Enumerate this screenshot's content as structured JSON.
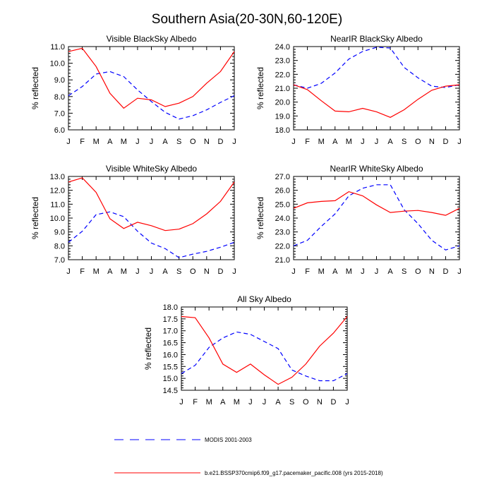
{
  "figure": {
    "title": "Southern Asia(20-30N,60-120E)",
    "legend": [
      {
        "label": "MODIS 2001-2003",
        "color": "#0000ff",
        "style": "dashed"
      },
      {
        "label": "b.e21.BSSP370cmip6.f09_g17.pacemaker_pacific.008 (yrs 2015-2018)",
        "color": "#ff0000",
        "style": "solid"
      }
    ]
  },
  "chart_data": [
    {
      "type": "line",
      "title": "Visible BlackSky Albedo",
      "ylabel": "% reflected",
      "categories": [
        "J",
        "F",
        "M",
        "A",
        "M",
        "J",
        "J",
        "A",
        "S",
        "O",
        "N",
        "D",
        "J"
      ],
      "ylim": [
        6.0,
        11.0
      ],
      "yticks": [
        "6.0",
        "7.0",
        "8.0",
        "9.0",
        "10.0",
        "11.0"
      ],
      "series": [
        {
          "name": "MODIS 2001-2003",
          "color": "#0000ff",
          "dashed": true,
          "values": [
            8.05,
            8.6,
            9.35,
            9.5,
            9.2,
            8.4,
            7.7,
            7.05,
            6.65,
            6.85,
            7.2,
            7.65,
            8.05
          ]
        },
        {
          "name": "b.e21.BSSP370cmip6.f09_g17.pacemaker_pacific.008 (yrs 2015-2018)",
          "color": "#ff0000",
          "dashed": false,
          "values": [
            10.7,
            10.9,
            9.8,
            8.2,
            7.3,
            7.9,
            7.8,
            7.4,
            7.6,
            8.0,
            8.8,
            9.5,
            10.7
          ]
        }
      ]
    },
    {
      "type": "line",
      "title": "NearIR BlackSky Albedo",
      "ylabel": "% reflected",
      "categories": [
        "J",
        "F",
        "M",
        "A",
        "M",
        "J",
        "J",
        "A",
        "S",
        "O",
        "N",
        "D",
        "J"
      ],
      "ylim": [
        18.0,
        24.0
      ],
      "yticks": [
        "18.0",
        "19.0",
        "20.0",
        "21.0",
        "22.0",
        "23.0",
        "24.0"
      ],
      "series": [
        {
          "name": "MODIS 2001-2003",
          "color": "#0000ff",
          "dashed": true,
          "values": [
            21.25,
            21.0,
            21.35,
            22.1,
            23.1,
            23.65,
            23.95,
            23.9,
            22.5,
            21.75,
            21.15,
            21.05,
            21.25
          ]
        },
        {
          "name": "b.e21.BSSP370cmip6.f09_g17.pacemaker_pacific.008 (yrs 2015-2018)",
          "color": "#ff0000",
          "dashed": false,
          "values": [
            21.25,
            20.9,
            20.1,
            19.35,
            19.3,
            19.55,
            19.3,
            18.9,
            19.45,
            20.2,
            20.85,
            21.15,
            21.25
          ]
        }
      ]
    },
    {
      "type": "line",
      "title": "Visible WhiteSky Albedo",
      "ylabel": "% reflected",
      "categories": [
        "J",
        "F",
        "M",
        "A",
        "M",
        "J",
        "J",
        "A",
        "S",
        "O",
        "N",
        "D",
        "J"
      ],
      "ylim": [
        7.0,
        13.0
      ],
      "yticks": [
        "7.0",
        "8.0",
        "9.0",
        "10.0",
        "11.0",
        "12.0",
        "13.0"
      ],
      "series": [
        {
          "name": "MODIS 2001-2003",
          "color": "#0000ff",
          "dashed": true,
          "values": [
            8.25,
            9.05,
            10.25,
            10.45,
            10.1,
            9.05,
            8.2,
            7.8,
            7.15,
            7.4,
            7.6,
            7.9,
            8.25
          ]
        },
        {
          "name": "b.e21.BSSP370cmip6.f09_g17.pacemaker_pacific.008 (yrs 2015-2018)",
          "color": "#ff0000",
          "dashed": false,
          "values": [
            12.6,
            12.9,
            11.85,
            9.95,
            9.25,
            9.7,
            9.45,
            9.1,
            9.2,
            9.6,
            10.3,
            11.2,
            12.6
          ]
        }
      ]
    },
    {
      "type": "line",
      "title": "NearIR WhiteSky Albedo",
      "ylabel": "% reflected",
      "categories": [
        "J",
        "F",
        "M",
        "A",
        "M",
        "J",
        "J",
        "A",
        "S",
        "O",
        "N",
        "D",
        "J"
      ],
      "ylim": [
        21.0,
        27.0
      ],
      "yticks": [
        "21.0",
        "22.0",
        "23.0",
        "24.0",
        "25.0",
        "26.0",
        "27.0"
      ],
      "series": [
        {
          "name": "MODIS 2001-2003",
          "color": "#0000ff",
          "dashed": true,
          "values": [
            22.0,
            22.4,
            23.4,
            24.3,
            25.6,
            26.15,
            26.4,
            26.4,
            24.6,
            23.6,
            22.4,
            21.7,
            22.0
          ]
        },
        {
          "name": "b.e21.BSSP370cmip6.f09_g17.pacemaker_pacific.008 (yrs 2015-2018)",
          "color": "#ff0000",
          "dashed": false,
          "values": [
            24.7,
            25.1,
            25.2,
            25.25,
            25.9,
            25.6,
            24.95,
            24.4,
            24.5,
            24.55,
            24.4,
            24.2,
            24.7
          ]
        }
      ]
    },
    {
      "type": "line",
      "title": "All Sky Albedo",
      "ylabel": "% reflected",
      "categories": [
        "J",
        "F",
        "M",
        "A",
        "M",
        "J",
        "J",
        "A",
        "S",
        "O",
        "N",
        "D",
        "J"
      ],
      "ylim": [
        14.5,
        18.0
      ],
      "yticks": [
        "14.5",
        "15.0",
        "15.5",
        "16.0",
        "16.5",
        "17.0",
        "17.5",
        "18.0"
      ],
      "series": [
        {
          "name": "MODIS 2001-2003",
          "color": "#0000ff",
          "dashed": true,
          "values": [
            15.2,
            15.55,
            16.3,
            16.7,
            16.95,
            16.85,
            16.55,
            16.25,
            15.35,
            15.1,
            14.9,
            14.9,
            15.2
          ]
        },
        {
          "name": "b.e21.BSSP370cmip6.f09_g17.pacemaker_pacific.008 (yrs 2015-2018)",
          "color": "#ff0000",
          "dashed": false,
          "values": [
            17.6,
            17.55,
            16.7,
            15.6,
            15.25,
            15.6,
            15.15,
            14.75,
            15.05,
            15.6,
            16.35,
            16.9,
            17.6
          ]
        }
      ]
    }
  ]
}
